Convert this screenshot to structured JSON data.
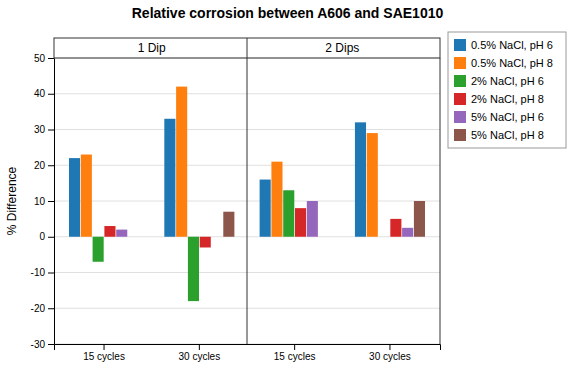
{
  "chart_data": {
    "type": "bar",
    "title": "Relative corrosion between A606 and SAE1010",
    "ylabel": "% Difference",
    "categories": [
      "15 cycles",
      "30 cycles",
      "15 cycles",
      "30 cycles"
    ],
    "annotations": [
      "1 Dip",
      "2 Dips"
    ],
    "series": [
      {
        "name": "0.5% NaCl, pH 6",
        "values": [
          22,
          33,
          16,
          32
        ]
      },
      {
        "name": "0.5% NaCl, pH 8",
        "values": [
          23,
          42,
          21,
          29
        ]
      },
      {
        "name": "2% NaCl, pH 6",
        "values": [
          -7,
          -18,
          13,
          0
        ]
      },
      {
        "name": "2% NaCl, pH 8",
        "values": [
          3,
          -3,
          8,
          5
        ]
      },
      {
        "name": "5% NaCl, pH 6",
        "values": [
          2,
          0,
          10,
          2.5
        ]
      },
      {
        "name": "5% NaCl, pH 8",
        "values": [
          0,
          7,
          0,
          10
        ]
      }
    ],
    "ylim": [
      -30,
      50
    ],
    "yticks": [
      -30,
      -20,
      -10,
      0,
      10,
      20,
      30,
      40,
      50
    ],
    "grid": true,
    "legend": "right"
  }
}
